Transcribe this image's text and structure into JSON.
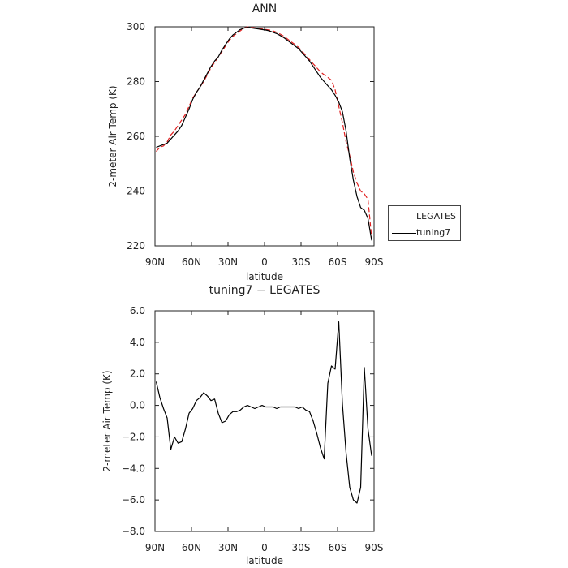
{
  "chart_data": [
    {
      "type": "line",
      "title": "ANN",
      "xlabel": "latitude",
      "ylabel": "2-meter Air Temp (K)",
      "xlim": [
        90,
        -90
      ],
      "ylim": [
        220,
        300
      ],
      "xticks": [
        90,
        60,
        30,
        0,
        -30,
        -60,
        -90
      ],
      "xtick_labels": [
        "90N",
        "60N",
        "30N",
        "0",
        "30S",
        "60S",
        "90S"
      ],
      "yticks": [
        220,
        240,
        260,
        280,
        300
      ],
      "ytick_labels": [
        "220",
        "240",
        "260",
        "280",
        "300"
      ],
      "legend_position": "right-outside-bottom",
      "series": [
        {
          "name": "LEGATES",
          "color": "#e02020",
          "dash": "dashed",
          "x": [
            89,
            86,
            83,
            80,
            77,
            74,
            71,
            68,
            65,
            62,
            59,
            56,
            53,
            50,
            47,
            44,
            41,
            38,
            35,
            32,
            29,
            26,
            23,
            20,
            17,
            14,
            11,
            8,
            5,
            2,
            -1,
            -4,
            -7,
            -10,
            -13,
            -16,
            -19,
            -22,
            -25,
            -28,
            -31,
            -34,
            -37,
            -40,
            -43,
            -46,
            -49,
            -52,
            -55,
            -58,
            -61,
            -64,
            -67,
            -70,
            -73,
            -76,
            -79,
            -82,
            -85,
            -88
          ],
          "y": [
            254.5,
            256,
            256.5,
            258,
            260.5,
            262,
            264,
            266,
            268,
            271,
            274,
            276,
            278,
            280,
            282.5,
            285,
            287,
            289,
            291,
            293,
            295,
            296.5,
            297.5,
            298.5,
            299.5,
            300,
            299.8,
            299.6,
            299.4,
            299.2,
            299,
            298.8,
            298.5,
            298,
            297.3,
            296.5,
            295.5,
            294.5,
            293.5,
            292.5,
            291,
            289.5,
            288,
            286.5,
            285,
            283.5,
            282.5,
            281.5,
            280.5,
            277,
            271,
            265,
            258,
            253,
            247,
            243,
            240,
            239,
            237,
            223
          ]
        },
        {
          "name": "tuning7",
          "color": "#000000",
          "dash": "solid",
          "x": [
            89,
            86,
            83,
            80,
            77,
            74,
            71,
            68,
            65,
            62,
            59,
            56,
            53,
            50,
            47,
            44,
            41,
            38,
            35,
            32,
            29,
            26,
            23,
            20,
            17,
            14,
            11,
            8,
            5,
            2,
            -1,
            -4,
            -7,
            -10,
            -13,
            -16,
            -19,
            -22,
            -25,
            -28,
            -31,
            -34,
            -37,
            -40,
            -43,
            -46,
            -49,
            -52,
            -55,
            -58,
            -61,
            -64,
            -67,
            -70,
            -73,
            -76,
            -79,
            -82,
            -85,
            -88
          ],
          "y": [
            256,
            256.5,
            257,
            257.5,
            259,
            260.5,
            262,
            264,
            267,
            270,
            273.5,
            276,
            278,
            280.5,
            283,
            285.5,
            287.5,
            289,
            291.5,
            293.5,
            295.5,
            297,
            298,
            299,
            299.5,
            299.8,
            299.6,
            299.4,
            299.2,
            299,
            298.8,
            298.5,
            298,
            297.5,
            296.8,
            296,
            295,
            294,
            293,
            292,
            290.5,
            289,
            287.5,
            285.5,
            283.5,
            281.5,
            280,
            278.5,
            277,
            275,
            272.5,
            269,
            262,
            252,
            244,
            238,
            234,
            233,
            230,
            222
          ]
        }
      ]
    },
    {
      "type": "line",
      "title": "tuning7 − LEGATES",
      "xlabel": "latitude",
      "ylabel": "2-meter Air Temp (K)",
      "xlim": [
        90,
        -90
      ],
      "ylim": [
        -8.0,
        6.0
      ],
      "xticks": [
        90,
        60,
        30,
        0,
        -30,
        -60,
        -90
      ],
      "xtick_labels": [
        "90N",
        "60N",
        "30N",
        "0",
        "30S",
        "60S",
        "90S"
      ],
      "yticks": [
        -8,
        -6,
        -4,
        -2,
        0,
        2,
        4,
        6
      ],
      "ytick_labels": [
        "−8.0",
        "−6.0",
        "−4.0",
        "−2.0",
        "0.0",
        "2.0",
        "4.0",
        "6.0"
      ],
      "series": [
        {
          "color": "#000000",
          "dash": "solid",
          "x": [
            89,
            86,
            83,
            80,
            77,
            74,
            71,
            68,
            65,
            62,
            59,
            56,
            53,
            50,
            47,
            44,
            41,
            38,
            35,
            32,
            29,
            26,
            23,
            20,
            17,
            14,
            11,
            8,
            5,
            2,
            -1,
            -4,
            -7,
            -10,
            -13,
            -16,
            -19,
            -22,
            -25,
            -28,
            -31,
            -34,
            -37,
            -40,
            -43,
            -46,
            -49,
            -52,
            -55,
            -58,
            -61,
            -64,
            -67,
            -70,
            -73,
            -76,
            -79,
            -82,
            -85,
            -88
          ],
          "y": [
            1.5,
            0.5,
            -0.2,
            -0.8,
            -2.8,
            -2.0,
            -2.4,
            -2.3,
            -1.5,
            -0.5,
            -0.2,
            0.3,
            0.5,
            0.8,
            0.6,
            0.3,
            0.4,
            -0.5,
            -1.1,
            -1.0,
            -0.6,
            -0.4,
            -0.4,
            -0.3,
            -0.1,
            0.0,
            -0.1,
            -0.2,
            -0.1,
            0.0,
            -0.1,
            -0.1,
            -0.1,
            -0.2,
            -0.1,
            -0.1,
            -0.1,
            -0.1,
            -0.1,
            -0.2,
            -0.1,
            -0.3,
            -0.4,
            -1.0,
            -1.8,
            -2.7,
            -3.4,
            1.4,
            2.5,
            2.3,
            5.3,
            0.1,
            -3.0,
            -5.2,
            -6.0,
            -6.2,
            -5.2,
            2.4,
            -1.5,
            -3.2
          ]
        }
      ]
    }
  ]
}
